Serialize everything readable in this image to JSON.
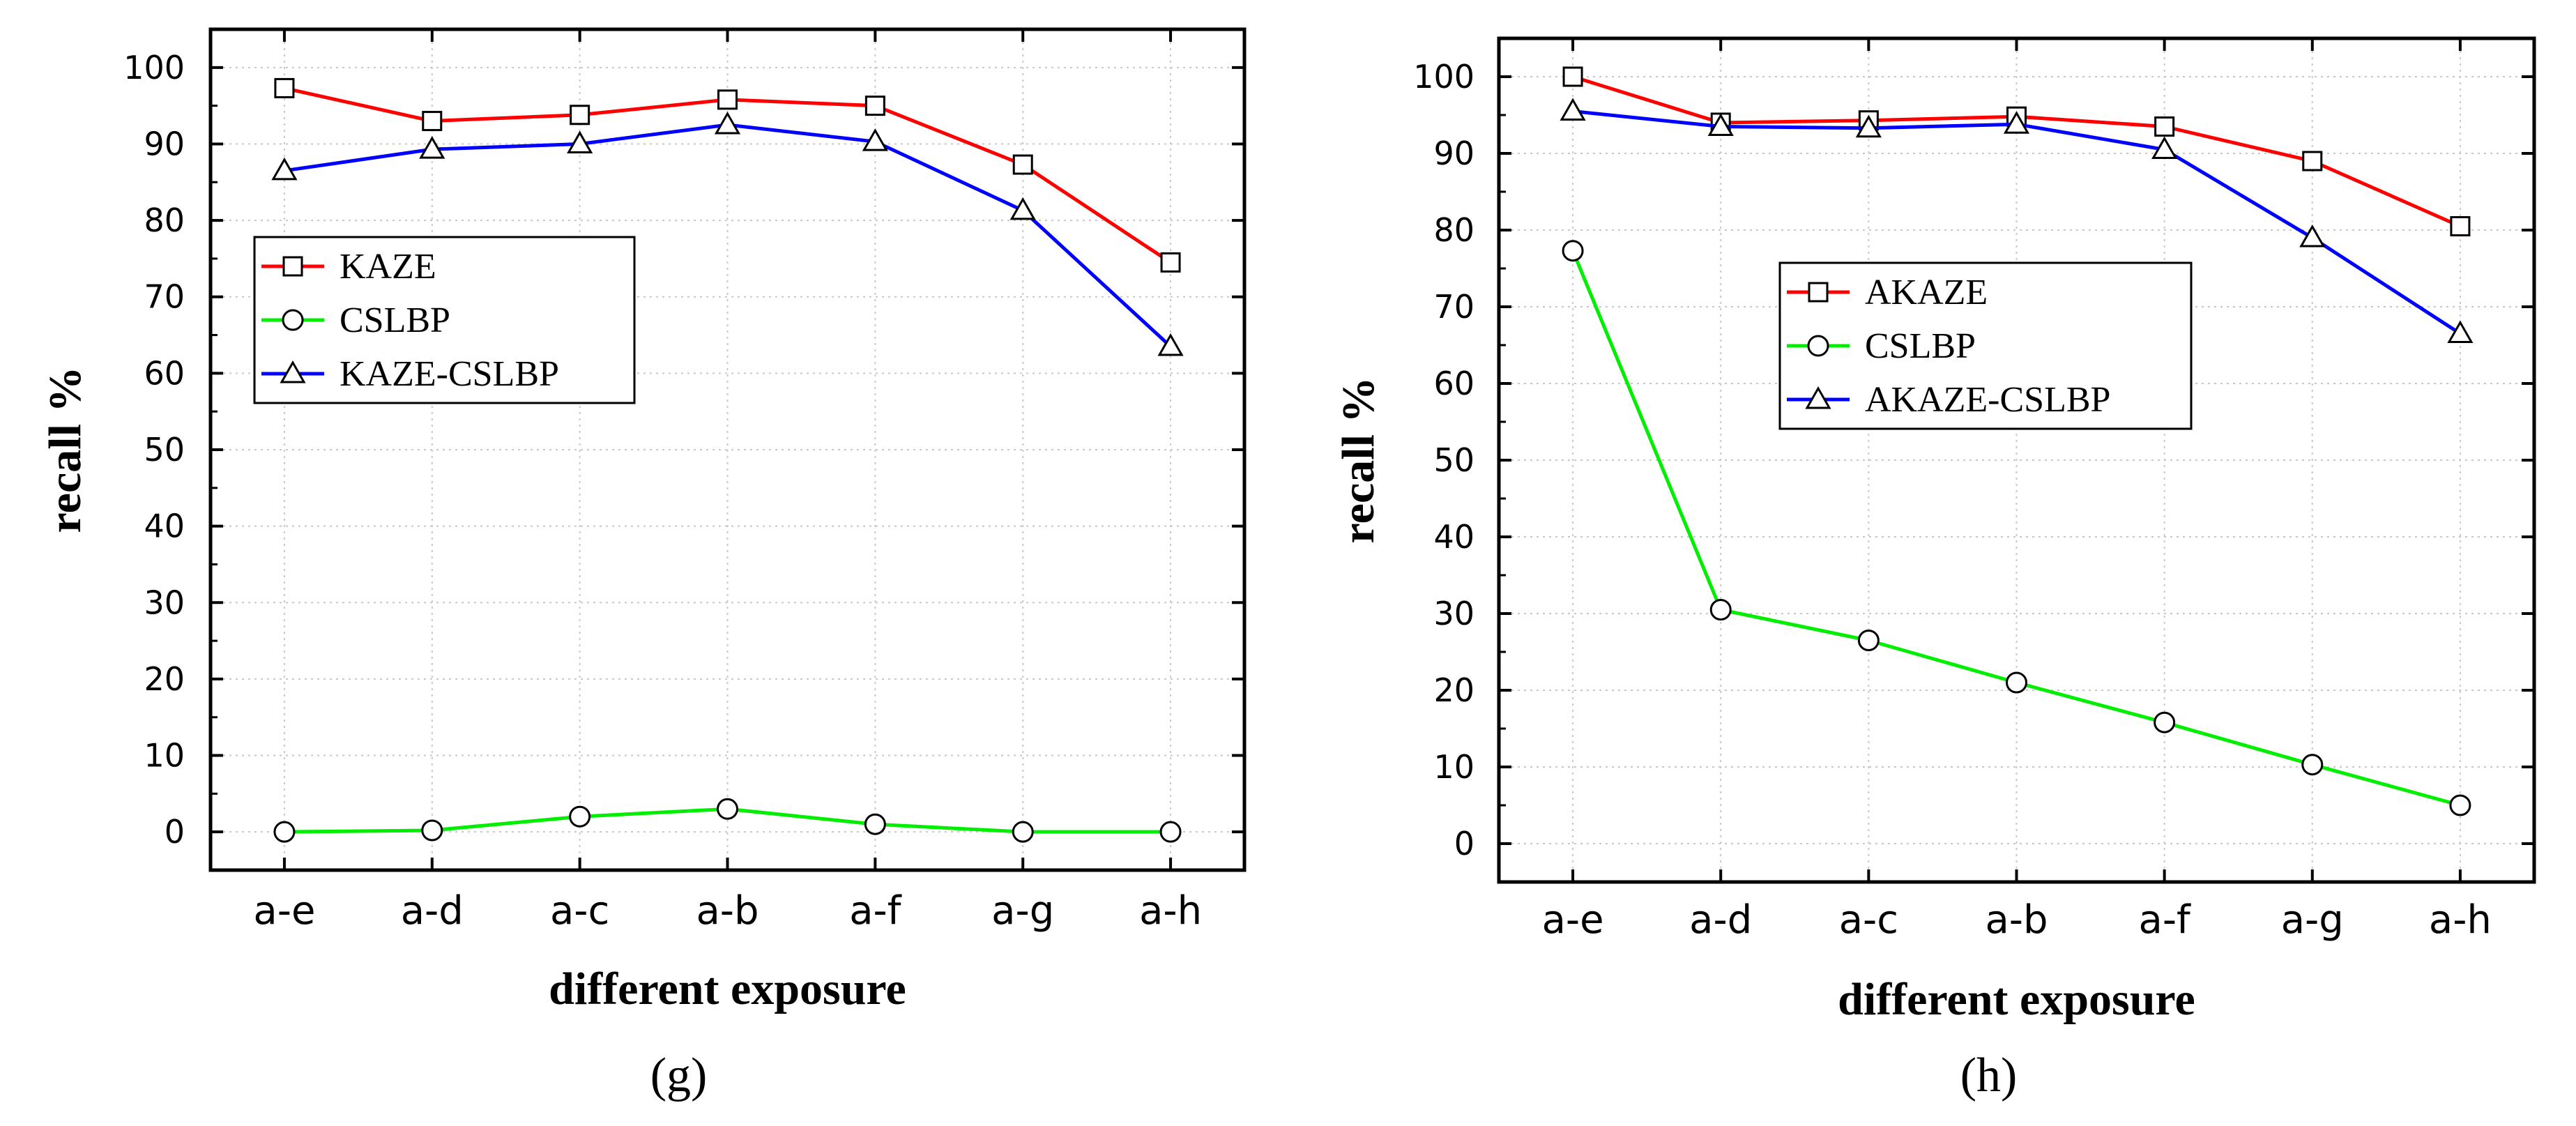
{
  "figure": {
    "panels": [
      "(g)",
      "(h)"
    ]
  },
  "chart_data": [
    {
      "type": "line",
      "panel_label": "(g)",
      "title": "",
      "xlabel": "different exposure",
      "ylabel": "recall %",
      "categories": [
        "a-e",
        "a-d",
        "a-c",
        "a-b",
        "a-f",
        "a-g",
        "a-h"
      ],
      "ylim": [
        -5,
        105
      ],
      "yticks": [
        0,
        10,
        20,
        30,
        40,
        50,
        60,
        70,
        80,
        90,
        100
      ],
      "grid": true,
      "legend_position": "upper-left",
      "series": [
        {
          "name": "KAZE",
          "color": "#ff0000",
          "marker": "square",
          "values": [
            97.3,
            93.0,
            93.8,
            95.8,
            95.0,
            87.3,
            74.5
          ]
        },
        {
          "name": "CSLBP",
          "color": "#00ee00",
          "marker": "circle",
          "values": [
            0.0,
            0.2,
            2.0,
            3.0,
            1.0,
            0.0,
            0.0
          ]
        },
        {
          "name": "KAZE-CSLBP",
          "color": "#0000ff",
          "marker": "triangle",
          "values": [
            86.5,
            89.3,
            90.0,
            92.5,
            90.3,
            81.3,
            63.5
          ]
        }
      ]
    },
    {
      "type": "line",
      "panel_label": "(h)",
      "title": "",
      "xlabel": "different exposure",
      "ylabel": "recall %",
      "categories": [
        "a-e",
        "a-d",
        "a-c",
        "a-b",
        "a-f",
        "a-g",
        "a-h"
      ],
      "ylim": [
        -5,
        105
      ],
      "yticks": [
        0,
        10,
        20,
        30,
        40,
        50,
        60,
        70,
        80,
        90,
        100
      ],
      "grid": true,
      "legend_position": "center",
      "series": [
        {
          "name": "AKAZE",
          "color": "#ff0000",
          "marker": "square",
          "values": [
            100.0,
            94.0,
            94.3,
            94.8,
            93.5,
            89.0,
            80.5
          ]
        },
        {
          "name": "CSLBP",
          "color": "#00ee00",
          "marker": "circle",
          "values": [
            77.3,
            30.5,
            26.5,
            21.0,
            15.8,
            10.3,
            5.0
          ]
        },
        {
          "name": "AKAZE-CSLBP",
          "color": "#0000ff",
          "marker": "triangle",
          "values": [
            95.5,
            93.5,
            93.3,
            93.8,
            90.5,
            79.0,
            66.5
          ]
        }
      ]
    }
  ]
}
